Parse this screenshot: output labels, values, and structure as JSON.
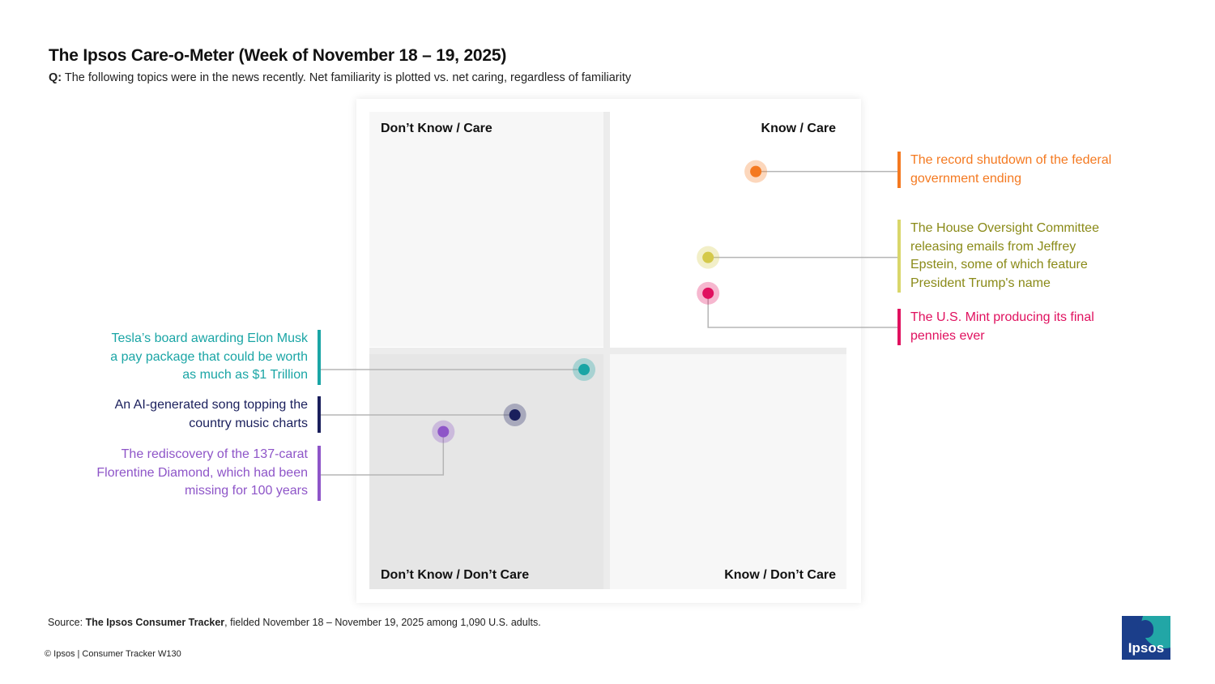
{
  "title": "The Ipsos Care-o-Meter (Week of November 18 – 19, 2025)",
  "subtitle": {
    "q_label": "Q:",
    "text": "The following topics were in the news recently. Net familiarity is plotted vs. net caring, regardless of familiarity"
  },
  "quadrants": {
    "top_left": "Don’t Know / Care",
    "top_right": "Know / Care",
    "bottom_left": "Don’t Know / Don’t Care",
    "bottom_right": "Know / Don’t Care"
  },
  "annotations": {
    "shutdown": [
      "The record shutdown of the federal",
      "government ending"
    ],
    "epstein": [
      "The House Oversight Committee",
      "releasing emails from Jeffrey",
      "Epstein, some of which feature",
      "President Trump's name"
    ],
    "pennies": [
      "The U.S. Mint producing its final",
      "pennies ever"
    ],
    "tesla": [
      "Tesla’s board awarding Elon Musk",
      "a pay package that could be worth",
      "as much as $1 Trillion"
    ],
    "ai_song": [
      "An AI-generated song topping the",
      "country music charts"
    ],
    "diamond": [
      "The rediscovery of the 137-carat",
      "Florentine Diamond, which had been",
      "missing for 100 years"
    ]
  },
  "chart_data": {
    "type": "scatter",
    "xlabel": "",
    "ylabel": "",
    "xlim": [
      -1,
      1
    ],
    "ylim": [
      -1,
      1
    ],
    "grid": false,
    "points": [
      {
        "id": "shutdown",
        "x": 0.62,
        "y": 0.75,
        "color": "#f47920"
      },
      {
        "id": "epstein",
        "x": 0.42,
        "y": 0.39,
        "color": "#d4c94a"
      },
      {
        "id": "pennies",
        "x": 0.42,
        "y": 0.24,
        "color": "#e0115f"
      },
      {
        "id": "tesla",
        "x": -0.1,
        "y": -0.08,
        "color": "#1aa5a5"
      },
      {
        "id": "ai_song",
        "x": -0.39,
        "y": -0.27,
        "color": "#1a1f5c"
      },
      {
        "id": "diamond",
        "x": -0.69,
        "y": -0.34,
        "color": "#8e55c8"
      }
    ]
  },
  "colors": {
    "shutdown": "#f47920",
    "epstein_text": "#8a8a18",
    "epstein_bar": "#d9d66a",
    "pennies": "#e0115f",
    "tesla": "#1aa5a5",
    "ai_song": "#1a1f5c",
    "diamond": "#8e55c8"
  },
  "source": {
    "prefix": "Source:",
    "name": "The Ipsos Consumer Tracker",
    "suffix": ", fielded November 18 – November 19, 2025 among 1,090 U.S. adults."
  },
  "copyright": "© Ipsos | Consumer Tracker W130",
  "logo_text": "Ipsos"
}
